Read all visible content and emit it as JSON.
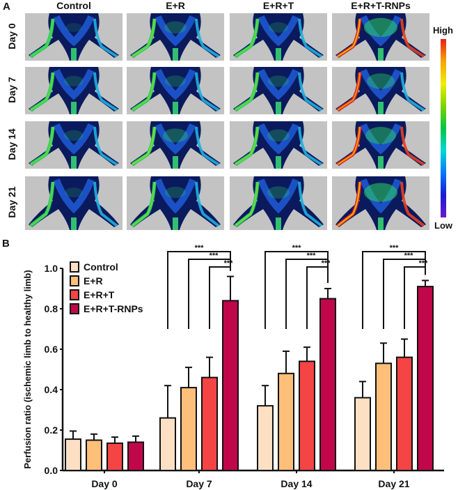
{
  "panel_a": {
    "label": "A",
    "columns": [
      "Control",
      "E+R",
      "E+R+T",
      "E+R+T-RNPs"
    ],
    "rows": [
      "Day 0",
      "Day 7",
      "Day 14",
      "Day 21"
    ],
    "colorbar": {
      "high_label": "High",
      "low_label": "Low"
    }
  },
  "panel_b": {
    "label": "B"
  },
  "chart_data": {
    "type": "bar",
    "title": "",
    "xlabel": "",
    "ylabel": "Perfusion ratio (ischemic limb to healthy limb)",
    "ylim": [
      0,
      1.0
    ],
    "yticks": [
      "0.0",
      "0.2",
      "0.4",
      "0.6",
      "0.8",
      "1.0"
    ],
    "categories": [
      "Day 0",
      "Day 7",
      "Day 14",
      "Day 21"
    ],
    "legend_position": "top-left",
    "series": [
      {
        "name": "Control",
        "color": "#fde0c4",
        "values": [
          0.155,
          0.26,
          0.32,
          0.36
        ],
        "error": [
          0.04,
          0.16,
          0.1,
          0.08
        ]
      },
      {
        "name": "E+R",
        "color": "#fdbf7a",
        "values": [
          0.15,
          0.41,
          0.48,
          0.53
        ],
        "error": [
          0.03,
          0.1,
          0.11,
          0.1
        ]
      },
      {
        "name": "E+R+T",
        "color": "#f44444",
        "values": [
          0.135,
          0.46,
          0.54,
          0.56
        ],
        "error": [
          0.03,
          0.1,
          0.07,
          0.09
        ]
      },
      {
        "name": "E+R+T-RNPs",
        "color": "#c0074a",
        "values": [
          0.14,
          0.84,
          0.85,
          0.91
        ],
        "error": [
          0.03,
          0.12,
          0.05,
          0.03
        ]
      }
    ],
    "significance": [
      {
        "category": "Day 7",
        "comparisons": [
          "Control vs E+R+T-RNPs",
          "E+R vs E+R+T-RNPs",
          "E+R+T vs E+R+T-RNPs"
        ],
        "label": "***"
      },
      {
        "category": "Day 14",
        "comparisons": [
          "Control vs E+R+T-RNPs",
          "E+R vs E+R+T-RNPs",
          "E+R+T vs E+R+T-RNPs"
        ],
        "label": "***"
      },
      {
        "category": "Day 21",
        "comparisons": [
          "Control vs E+R+T-RNPs",
          "E+R vs E+R+T-RNPs",
          "E+R+T vs E+R+T-RNPs"
        ],
        "label": "***"
      }
    ]
  }
}
